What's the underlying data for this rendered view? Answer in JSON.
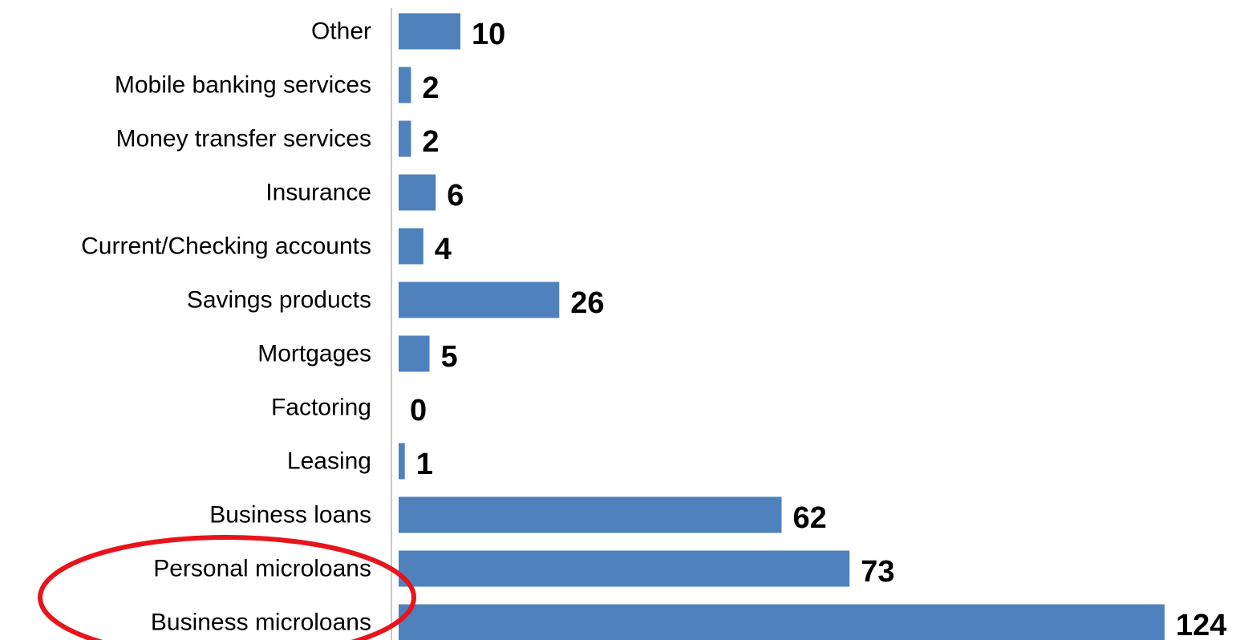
{
  "chart_data": {
    "type": "bar",
    "orientation": "horizontal",
    "categories": [
      "Business microloans",
      "Personal microloans",
      "Business loans",
      "Leasing",
      "Factoring",
      "Mortgages",
      "Savings products",
      "Current/Checking accounts",
      "Insurance",
      "Money transfer services",
      "Mobile banking services",
      "Other"
    ],
    "values": [
      124,
      73,
      62,
      1,
      0,
      5,
      26,
      4,
      6,
      2,
      2,
      10
    ],
    "title": "",
    "xlabel": "",
    "ylabel": "",
    "xlim": [
      0,
      124
    ],
    "grid": false,
    "legend": "none",
    "data_labels": true,
    "highlight": {
      "shape": "ellipse",
      "color": "#e8141c",
      "categories": [
        "Personal microloans",
        "Business microloans"
      ]
    },
    "colors": {
      "bar": "#4f81bd",
      "axis": "#c8c8c8",
      "text": "#000000"
    }
  }
}
